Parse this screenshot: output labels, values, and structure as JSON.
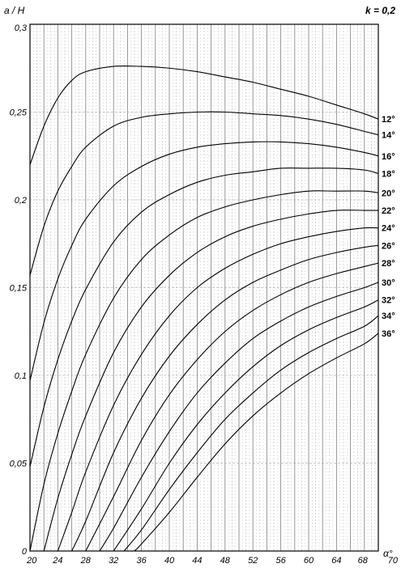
{
  "chart_data": {
    "type": "line",
    "ylabel": "a / H",
    "xlabel": "α°",
    "param_label": "k  =  0,2",
    "xlim": [
      20,
      70
    ],
    "ylim": [
      0,
      0.3
    ],
    "x_ticks": [
      "20",
      "24",
      "28",
      "32",
      "36",
      "40",
      "44",
      "48",
      "52",
      "56",
      "60",
      "64",
      "68",
      "70"
    ],
    "x_tick_values": [
      20,
      24,
      28,
      32,
      36,
      40,
      44,
      48,
      52,
      56,
      60,
      64,
      68,
      70
    ],
    "y_ticks": [
      "0",
      "0,05",
      "0,1",
      "0,15",
      "0,2",
      "0,25",
      "0,3"
    ],
    "y_tick_values": [
      0,
      0.05,
      0.1,
      0.15,
      0.2,
      0.25,
      0.3
    ],
    "grid": true,
    "series": [
      {
        "name": "12°",
        "points": [
          [
            20,
            0.22
          ],
          [
            22,
            0.242
          ],
          [
            24,
            0.258
          ],
          [
            26,
            0.268
          ],
          [
            28,
            0.273
          ],
          [
            32,
            0.276
          ],
          [
            36,
            0.276
          ],
          [
            40,
            0.275
          ],
          [
            44,
            0.273
          ],
          [
            48,
            0.27
          ],
          [
            52,
            0.267
          ],
          [
            56,
            0.263
          ],
          [
            60,
            0.259
          ],
          [
            64,
            0.254
          ],
          [
            68,
            0.249
          ],
          [
            70,
            0.246
          ]
        ]
      },
      {
        "name": "14°",
        "points": [
          [
            20,
            0.157
          ],
          [
            22,
            0.185
          ],
          [
            24,
            0.205
          ],
          [
            26,
            0.219
          ],
          [
            28,
            0.23
          ],
          [
            32,
            0.242
          ],
          [
            36,
            0.247
          ],
          [
            40,
            0.249
          ],
          [
            44,
            0.25
          ],
          [
            48,
            0.25
          ],
          [
            52,
            0.249
          ],
          [
            56,
            0.248
          ],
          [
            60,
            0.246
          ],
          [
            64,
            0.243
          ],
          [
            68,
            0.239
          ],
          [
            70,
            0.237
          ]
        ]
      },
      {
        "name": "16°",
        "points": [
          [
            20,
            0.097
          ],
          [
            22,
            0.13
          ],
          [
            24,
            0.155
          ],
          [
            26,
            0.174
          ],
          [
            28,
            0.189
          ],
          [
            32,
            0.208
          ],
          [
            36,
            0.219
          ],
          [
            40,
            0.226
          ],
          [
            44,
            0.23
          ],
          [
            48,
            0.232
          ],
          [
            52,
            0.233
          ],
          [
            56,
            0.233
          ],
          [
            60,
            0.232
          ],
          [
            64,
            0.23
          ],
          [
            68,
            0.227
          ],
          [
            70,
            0.225
          ]
        ]
      },
      {
        "name": "18°",
        "points": [
          [
            20,
            0.048
          ],
          [
            22,
            0.082
          ],
          [
            24,
            0.109
          ],
          [
            26,
            0.131
          ],
          [
            28,
            0.149
          ],
          [
            32,
            0.176
          ],
          [
            36,
            0.193
          ],
          [
            40,
            0.203
          ],
          [
            44,
            0.21
          ],
          [
            48,
            0.214
          ],
          [
            52,
            0.216
          ],
          [
            56,
            0.218
          ],
          [
            60,
            0.218
          ],
          [
            64,
            0.218
          ],
          [
            68,
            0.217
          ],
          [
            70,
            0.215
          ]
        ]
      },
      {
        "name": "20°",
        "points": [
          [
            20,
            0.0
          ],
          [
            22,
            0.038
          ],
          [
            24,
            0.067
          ],
          [
            26,
            0.091
          ],
          [
            28,
            0.112
          ],
          [
            32,
            0.144
          ],
          [
            36,
            0.166
          ],
          [
            40,
            0.18
          ],
          [
            44,
            0.19
          ],
          [
            48,
            0.196
          ],
          [
            52,
            0.2
          ],
          [
            56,
            0.203
          ],
          [
            60,
            0.205
          ],
          [
            64,
            0.205
          ],
          [
            68,
            0.205
          ],
          [
            70,
            0.204
          ]
        ]
      },
      {
        "name": "22°",
        "points": [
          [
            22,
            0.0
          ],
          [
            24,
            0.03
          ],
          [
            26,
            0.055
          ],
          [
            28,
            0.077
          ],
          [
            32,
            0.113
          ],
          [
            36,
            0.139
          ],
          [
            40,
            0.157
          ],
          [
            44,
            0.17
          ],
          [
            48,
            0.179
          ],
          [
            52,
            0.185
          ],
          [
            56,
            0.189
          ],
          [
            60,
            0.192
          ],
          [
            64,
            0.194
          ],
          [
            68,
            0.194
          ],
          [
            70,
            0.194
          ]
        ]
      },
      {
        "name": "24°",
        "points": [
          [
            24,
            0.0
          ],
          [
            26,
            0.022
          ],
          [
            28,
            0.045
          ],
          [
            32,
            0.083
          ],
          [
            36,
            0.112
          ],
          [
            40,
            0.134
          ],
          [
            44,
            0.15
          ],
          [
            48,
            0.161
          ],
          [
            52,
            0.169
          ],
          [
            56,
            0.175
          ],
          [
            60,
            0.179
          ],
          [
            64,
            0.182
          ],
          [
            68,
            0.184
          ],
          [
            70,
            0.184
          ]
        ]
      },
      {
        "name": "26°",
        "points": [
          [
            26,
            0.0
          ],
          [
            28,
            0.017
          ],
          [
            32,
            0.056
          ],
          [
            36,
            0.087
          ],
          [
            40,
            0.111
          ],
          [
            44,
            0.129
          ],
          [
            48,
            0.143
          ],
          [
            52,
            0.153
          ],
          [
            56,
            0.16
          ],
          [
            60,
            0.166
          ],
          [
            64,
            0.17
          ],
          [
            68,
            0.173
          ],
          [
            70,
            0.174
          ]
        ]
      },
      {
        "name": "28°",
        "points": [
          [
            28,
            0.0
          ],
          [
            32,
            0.031
          ],
          [
            36,
            0.063
          ],
          [
            40,
            0.089
          ],
          [
            44,
            0.109
          ],
          [
            48,
            0.125
          ],
          [
            52,
            0.137
          ],
          [
            56,
            0.146
          ],
          [
            60,
            0.153
          ],
          [
            64,
            0.158
          ],
          [
            68,
            0.162
          ],
          [
            70,
            0.164
          ]
        ]
      },
      {
        "name": "30°",
        "points": [
          [
            30,
            0.0
          ],
          [
            32,
            0.013
          ],
          [
            36,
            0.042
          ],
          [
            40,
            0.068
          ],
          [
            44,
            0.09
          ],
          [
            48,
            0.107
          ],
          [
            52,
            0.121
          ],
          [
            56,
            0.131
          ],
          [
            60,
            0.139
          ],
          [
            64,
            0.145
          ],
          [
            68,
            0.15
          ],
          [
            70,
            0.153
          ]
        ]
      },
      {
        "name": "32°",
        "points": [
          [
            32,
            0.0
          ],
          [
            36,
            0.024
          ],
          [
            40,
            0.05
          ],
          [
            44,
            0.072
          ],
          [
            48,
            0.09
          ],
          [
            52,
            0.105
          ],
          [
            56,
            0.117
          ],
          [
            60,
            0.126
          ],
          [
            64,
            0.133
          ],
          [
            68,
            0.139
          ],
          [
            70,
            0.143
          ]
        ]
      },
      {
        "name": "34°",
        "points": [
          [
            33.5,
            0.0
          ],
          [
            36,
            0.012
          ],
          [
            40,
            0.035
          ],
          [
            44,
            0.056
          ],
          [
            48,
            0.075
          ],
          [
            52,
            0.09
          ],
          [
            56,
            0.103
          ],
          [
            60,
            0.113
          ],
          [
            64,
            0.121
          ],
          [
            68,
            0.128
          ],
          [
            70,
            0.134
          ]
        ]
      },
      {
        "name": "36°",
        "points": [
          [
            35,
            0.0
          ],
          [
            36,
            0.004
          ],
          [
            40,
            0.022
          ],
          [
            44,
            0.042
          ],
          [
            48,
            0.061
          ],
          [
            52,
            0.077
          ],
          [
            56,
            0.09
          ],
          [
            60,
            0.101
          ],
          [
            64,
            0.11
          ],
          [
            68,
            0.118
          ],
          [
            70,
            0.124
          ]
        ]
      }
    ]
  }
}
